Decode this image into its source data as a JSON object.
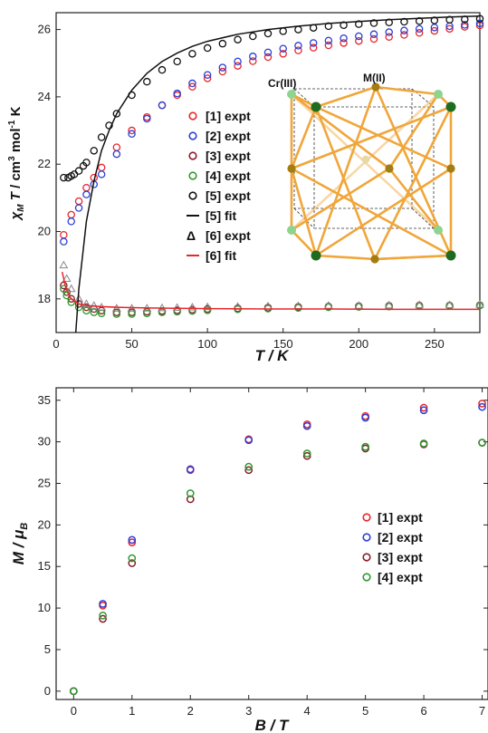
{
  "colors": {
    "red": "#e8262b",
    "blue": "#2a3fd6",
    "darkred": "#8b1a2e",
    "green": "#2f9a2f",
    "black": "#111111",
    "gray": "#888888",
    "orange": "#f0a63a"
  },
  "chart_data": [
    {
      "type": "scatter",
      "title": "",
      "xlabel": "T / K",
      "ylabel": "χM T / cm3 mol-1 K",
      "xlim": [
        0,
        280
      ],
      "ylim": [
        17,
        26.5
      ],
      "xticks": [
        0,
        50,
        100,
        150,
        200,
        250
      ],
      "yticks": [
        18,
        20,
        22,
        24,
        26
      ],
      "legend_position": "center",
      "legend": [
        {
          "label": "[1] expt",
          "marker": "circle",
          "color": "#e8262b"
        },
        {
          "label": "[2] expt",
          "marker": "circle",
          "color": "#2a3fd6"
        },
        {
          "label": "[3] expt",
          "marker": "circle",
          "color": "#8b1a2e"
        },
        {
          "label": "[4] expt",
          "marker": "circle",
          "color": "#2f9a2f"
        },
        {
          "label": "[5] expt",
          "marker": "circle",
          "color": "#111111"
        },
        {
          "label": "[5] fit",
          "marker": "line",
          "color": "#111111"
        },
        {
          "label": "[6] expt",
          "marker": "triangle",
          "prefix": "Δ",
          "color": "#888888"
        },
        {
          "label": "[6] fit",
          "marker": "line",
          "color": "#e8262b"
        }
      ],
      "inset_labels": {
        "left": "Cr(III)",
        "right": "M(II)"
      },
      "series": [
        {
          "name": "[1] expt",
          "marker": "circle",
          "color": "#e8262b",
          "x": [
            5,
            10,
            15,
            20,
            25,
            30,
            40,
            50,
            60,
            70,
            80,
            90,
            100,
            110,
            120,
            130,
            140,
            150,
            160,
            170,
            180,
            190,
            200,
            210,
            220,
            230,
            240,
            250,
            260,
            270,
            280
          ],
          "y": [
            19.9,
            20.5,
            20.9,
            21.3,
            21.6,
            21.9,
            22.5,
            23.0,
            23.4,
            23.75,
            24.05,
            24.3,
            24.55,
            24.75,
            24.92,
            25.06,
            25.18,
            25.28,
            25.38,
            25.46,
            25.53,
            25.6,
            25.66,
            25.72,
            25.78,
            25.84,
            25.9,
            25.96,
            26.02,
            26.08,
            26.12
          ]
        },
        {
          "name": "[2] expt",
          "marker": "circle",
          "color": "#2a3fd6",
          "x": [
            5,
            10,
            15,
            20,
            25,
            30,
            40,
            50,
            60,
            70,
            80,
            90,
            100,
            110,
            120,
            130,
            140,
            150,
            160,
            170,
            180,
            190,
            200,
            210,
            220,
            230,
            240,
            250,
            260,
            270,
            280
          ],
          "y": [
            19.7,
            20.3,
            20.7,
            21.1,
            21.4,
            21.7,
            22.3,
            22.9,
            23.35,
            23.75,
            24.1,
            24.4,
            24.65,
            24.87,
            25.05,
            25.2,
            25.32,
            25.43,
            25.52,
            25.6,
            25.67,
            25.74,
            25.8,
            25.86,
            25.92,
            25.97,
            26.02,
            26.06,
            26.1,
            26.14,
            26.18
          ]
        },
        {
          "name": "[3] expt",
          "marker": "circle",
          "color": "#8b1a2e",
          "x": [
            5,
            7,
            10,
            15,
            20,
            25,
            30,
            40,
            50,
            60,
            70,
            80,
            90,
            100,
            120,
            140,
            160,
            180,
            200,
            220,
            240,
            260,
            280
          ],
          "y": [
            18.4,
            18.2,
            18.0,
            17.85,
            17.75,
            17.7,
            17.65,
            17.6,
            17.6,
            17.62,
            17.64,
            17.66,
            17.68,
            17.7,
            17.72,
            17.74,
            17.76,
            17.77,
            17.78,
            17.79,
            17.8,
            17.8,
            17.81
          ]
        },
        {
          "name": "[4] expt",
          "marker": "circle",
          "color": "#2f9a2f",
          "x": [
            5,
            7,
            10,
            15,
            20,
            25,
            30,
            40,
            50,
            60,
            70,
            80,
            90,
            100,
            120,
            140,
            160,
            180,
            200,
            220,
            240,
            260,
            280
          ],
          "y": [
            18.3,
            18.1,
            17.9,
            17.75,
            17.65,
            17.6,
            17.57,
            17.55,
            17.55,
            17.57,
            17.6,
            17.62,
            17.64,
            17.66,
            17.69,
            17.71,
            17.73,
            17.75,
            17.76,
            17.77,
            17.78,
            17.79,
            17.8
          ]
        },
        {
          "name": "[5] expt",
          "marker": "circle",
          "color": "#111111",
          "x": [
            5,
            8,
            10,
            12,
            15,
            18,
            20,
            25,
            30,
            35,
            40,
            50,
            60,
            70,
            80,
            90,
            100,
            110,
            120,
            130,
            140,
            150,
            160,
            170,
            180,
            190,
            200,
            210,
            220,
            230,
            240,
            250,
            260,
            270,
            280
          ],
          "y": [
            21.6,
            21.6,
            21.65,
            21.7,
            21.8,
            21.95,
            22.05,
            22.4,
            22.8,
            23.15,
            23.5,
            24.05,
            24.45,
            24.8,
            25.05,
            25.28,
            25.45,
            25.58,
            25.7,
            25.8,
            25.88,
            25.95,
            26.0,
            26.05,
            26.1,
            26.13,
            26.16,
            26.19,
            26.21,
            26.23,
            26.25,
            26.27,
            26.29,
            26.3,
            26.32
          ]
        },
        {
          "name": "[6] expt",
          "marker": "triangle",
          "color": "#888888",
          "x": [
            5,
            7,
            10,
            15,
            20,
            25,
            30,
            40,
            50,
            60,
            70,
            80,
            90,
            100,
            120,
            140,
            160,
            180,
            200,
            220,
            240,
            260,
            280
          ],
          "y": [
            19.0,
            18.6,
            18.3,
            18.0,
            17.85,
            17.8,
            17.75,
            17.72,
            17.72,
            17.72,
            17.73,
            17.74,
            17.75,
            17.76,
            17.77,
            17.78,
            17.79,
            17.8,
            17.8,
            17.81,
            17.82,
            17.82,
            17.83
          ]
        },
        {
          "name": "[5] fit",
          "marker": "line",
          "color": "#111111",
          "x": [
            13,
            15,
            18,
            20,
            25,
            30,
            35,
            40,
            50,
            60,
            70,
            80,
            90,
            100,
            120,
            140,
            160,
            180,
            200,
            220,
            240,
            260,
            280
          ],
          "y": [
            17.0,
            18.3,
            19.5,
            20.3,
            21.5,
            22.4,
            23.0,
            23.5,
            24.2,
            24.7,
            25.05,
            25.3,
            25.5,
            25.65,
            25.86,
            26.0,
            26.1,
            26.18,
            26.24,
            26.29,
            26.33,
            26.37,
            26.4
          ]
        },
        {
          "name": "[6] fit",
          "marker": "line",
          "color": "#e8262b",
          "x": [
            4,
            6,
            8,
            10,
            15,
            20,
            30,
            40,
            60,
            80,
            100,
            140,
            180,
            220,
            260,
            280
          ],
          "y": [
            18.8,
            18.4,
            18.15,
            18.0,
            17.85,
            17.8,
            17.77,
            17.75,
            17.73,
            17.72,
            17.71,
            17.7,
            17.7,
            17.69,
            17.69,
            17.69
          ]
        }
      ]
    },
    {
      "type": "scatter",
      "title": "",
      "xlabel": "B / T",
      "ylabel": "M / μB",
      "xlim": [
        -0.3,
        7.1
      ],
      "ylim": [
        -1,
        36.5
      ],
      "xticks": [
        0,
        1,
        2,
        3,
        4,
        5,
        6,
        7
      ],
      "yticks": [
        0,
        5,
        10,
        15,
        20,
        25,
        30,
        35
      ],
      "legend_position": "right",
      "legend": [
        {
          "label": "[1] expt",
          "color": "#e8262b"
        },
        {
          "label": "[2] expt",
          "color": "#2a3fd6"
        },
        {
          "label": "[3] expt",
          "color": "#8b1a2e"
        },
        {
          "label": "[4] expt",
          "color": "#2f9a2f"
        }
      ],
      "series": [
        {
          "name": "[1] expt",
          "color": "#e8262b",
          "x": [
            0,
            0.5,
            1,
            2,
            3,
            4,
            5,
            6,
            7
          ],
          "y": [
            0,
            10.3,
            17.9,
            26.6,
            30.3,
            32.1,
            33.1,
            34.1,
            34.6
          ]
        },
        {
          "name": "[2] expt",
          "color": "#2a3fd6",
          "x": [
            0,
            0.5,
            1,
            2,
            3,
            4,
            5,
            6,
            7
          ],
          "y": [
            0,
            10.5,
            18.2,
            26.7,
            30.2,
            31.9,
            32.9,
            33.8,
            34.2
          ]
        },
        {
          "name": "[3] expt",
          "color": "#8b1a2e",
          "x": [
            0,
            0.5,
            1,
            2,
            3,
            4,
            5,
            6,
            7
          ],
          "y": [
            0,
            8.7,
            15.4,
            23.1,
            26.6,
            28.3,
            29.2,
            29.7,
            29.9
          ]
        },
        {
          "name": "[4] expt",
          "color": "#2f9a2f",
          "x": [
            0,
            0.5,
            1,
            2,
            3,
            4,
            5,
            6,
            7
          ],
          "y": [
            0,
            9.1,
            16.0,
            23.8,
            27.0,
            28.6,
            29.4,
            29.8,
            29.9
          ]
        }
      ]
    }
  ]
}
